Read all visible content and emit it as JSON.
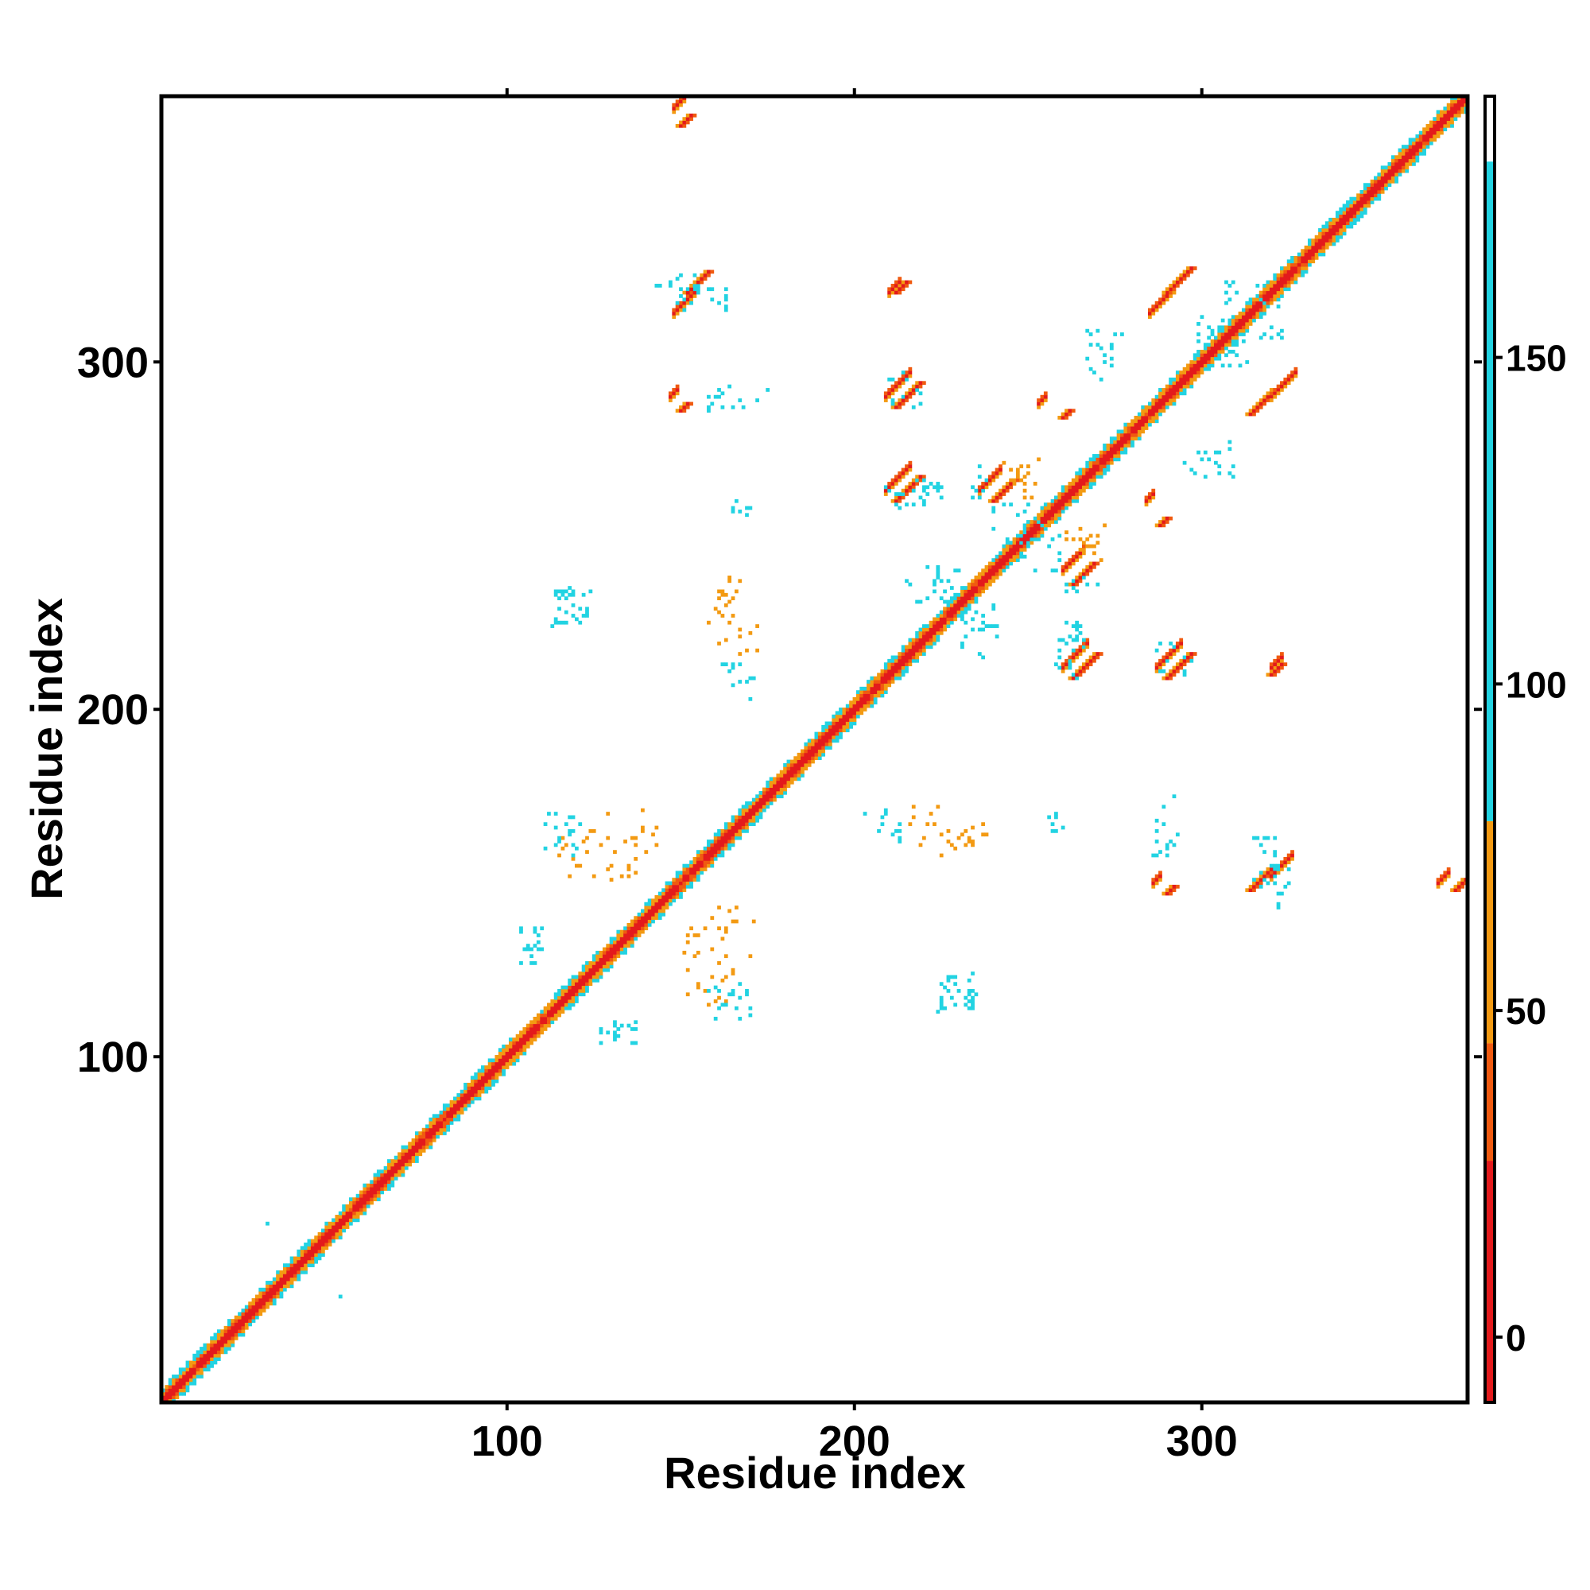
{
  "chart_data": {
    "type": "heatmap",
    "title": "",
    "xlabel": "Residue index",
    "ylabel": "Residue index",
    "xlim": [
      1,
      376
    ],
    "ylim": [
      1,
      376
    ],
    "x_ticks": [
      100,
      200,
      300
    ],
    "y_ticks": [
      100,
      200,
      300
    ],
    "colorbar": {
      "range": [
        -10,
        190
      ],
      "ticks": [
        0,
        50,
        100,
        150
      ],
      "bands": [
        {
          "from": -10,
          "to": 27,
          "color": "#e31a1c"
        },
        {
          "from": 27,
          "to": 45,
          "color": "#f05a10"
        },
        {
          "from": 45,
          "to": 79,
          "color": "#f39a12"
        },
        {
          "from": 79,
          "to": 180,
          "color": "#22d3e2"
        },
        {
          "from": 180,
          "to": 190,
          "color": "#ffffff"
        }
      ]
    },
    "grid": false,
    "diagonal": {
      "from": 1,
      "to": 376
    },
    "contact_blocks": [
      {
        "x": 148,
        "y": 314,
        "len": 8,
        "value": 5
      },
      {
        "x": 285,
        "y": 314,
        "len": 8,
        "value": 5
      },
      {
        "x": 209,
        "y": 290,
        "len": 8,
        "value": 5
      },
      {
        "x": 209,
        "y": 263,
        "len": 8,
        "value": 5
      },
      {
        "x": 236,
        "y": 263,
        "len": 7,
        "value": 5
      },
      {
        "x": 320,
        "y": 290,
        "len": 8,
        "value": 5
      },
      {
        "x": 260,
        "y": 240,
        "len": 7,
        "value": 5
      },
      {
        "x": 260,
        "y": 212,
        "len": 8,
        "value": 5
      },
      {
        "x": 287,
        "y": 212,
        "len": 8,
        "value": 5
      },
      {
        "x": 320,
        "y": 152,
        "len": 7,
        "value": 5
      },
      {
        "x": 148,
        "y": 373,
        "len": 4,
        "value": 5
      },
      {
        "x": 210,
        "y": 320,
        "len": 4,
        "value": 5
      },
      {
        "x": 368,
        "y": 150,
        "len": 4,
        "value": 5
      },
      {
        "x": 320,
        "y": 212,
        "len": 4,
        "value": 5
      },
      {
        "x": 147,
        "y": 290,
        "len": 3,
        "value": 5
      },
      {
        "x": 253,
        "y": 288,
        "len": 3,
        "value": 5
      },
      {
        "x": 284,
        "y": 260,
        "len": 3,
        "value": 5
      },
      {
        "x": 286,
        "y": 150,
        "len": 3,
        "value": 5
      }
    ],
    "scatter_patches": [
      {
        "cx": 118,
        "cy": 230,
        "rx": 6,
        "ry": 6,
        "n": 22,
        "value": 95
      },
      {
        "cx": 166,
        "cy": 225,
        "rx": 7,
        "ry": 9,
        "n": 16,
        "value": 55
      },
      {
        "cx": 168,
        "cy": 206,
        "rx": 4,
        "ry": 3,
        "n": 6,
        "value": 95
      },
      {
        "cx": 168,
        "cy": 258,
        "rx": 3,
        "ry": 2,
        "n": 5,
        "value": 95
      },
      {
        "cx": 215,
        "cy": 262,
        "rx": 7,
        "ry": 4,
        "n": 14,
        "value": 95
      },
      {
        "cx": 215,
        "cy": 292,
        "rx": 6,
        "ry": 5,
        "n": 12,
        "value": 95
      },
      {
        "cx": 168,
        "cy": 290,
        "rx": 8,
        "ry": 3,
        "n": 10,
        "value": 95
      },
      {
        "cx": 155,
        "cy": 318,
        "rx": 9,
        "ry": 4,
        "n": 16,
        "value": 95
      },
      {
        "cx": 246,
        "cy": 254,
        "rx": 8,
        "ry": 6,
        "n": 16,
        "value": 95
      },
      {
        "cx": 247,
        "cy": 268,
        "rx": 4,
        "ry": 3,
        "n": 10,
        "value": 55
      },
      {
        "cx": 266,
        "cy": 236,
        "rx": 6,
        "ry": 3,
        "n": 10,
        "value": 95
      },
      {
        "cx": 267,
        "cy": 250,
        "rx": 6,
        "ry": 3,
        "n": 8,
        "value": 55
      },
      {
        "cx": 223,
        "cy": 238,
        "rx": 7,
        "ry": 3,
        "n": 10,
        "value": 95
      },
      {
        "cx": 234,
        "cy": 222,
        "rx": 4,
        "ry": 8,
        "n": 12,
        "value": 95
      },
      {
        "cx": 262,
        "cy": 220,
        "rx": 3,
        "ry": 7,
        "n": 12,
        "value": 95
      },
      {
        "cx": 272,
        "cy": 305,
        "rx": 5,
        "ry": 5,
        "n": 12,
        "value": 95
      },
      {
        "cx": 303,
        "cy": 310,
        "rx": 5,
        "ry": 5,
        "n": 10,
        "value": 95
      },
      {
        "cx": 300,
        "cy": 270,
        "rx": 5,
        "ry": 4,
        "n": 10,
        "value": 95
      },
      {
        "cx": 312,
        "cy": 320,
        "rx": 6,
        "ry": 4,
        "n": 10,
        "value": 95
      },
      {
        "cx": 232,
        "cy": 162,
        "rx": 7,
        "ry": 5,
        "n": 14,
        "value": 55
      },
      {
        "cx": 212,
        "cy": 164,
        "rx": 2,
        "ry": 4,
        "n": 6,
        "value": 95
      },
      {
        "cx": 259,
        "cy": 165,
        "rx": 2,
        "ry": 2,
        "n": 3,
        "value": 95
      },
      {
        "cx": 288,
        "cy": 162,
        "rx": 3,
        "ry": 5,
        "n": 8,
        "value": 95
      },
      {
        "cx": 323,
        "cy": 154,
        "rx": 3,
        "ry": 5,
        "n": 10,
        "value": 95
      },
      {
        "cx": 322,
        "cy": 145,
        "rx": 1,
        "ry": 3,
        "n": 4,
        "value": 95
      },
      {
        "cx": 124,
        "cy": 158,
        "rx": 10,
        "ry": 7,
        "n": 22,
        "value": 55
      },
      {
        "cx": 119,
        "cy": 163,
        "rx": 4,
        "ry": 5,
        "n": 8,
        "value": 95
      },
      {
        "cx": 161,
        "cy": 134,
        "rx": 10,
        "ry": 9,
        "n": 20,
        "value": 55
      },
      {
        "cx": 166,
        "cy": 115,
        "rx": 6,
        "ry": 4,
        "n": 10,
        "value": 95
      },
      {
        "cx": 107,
        "cy": 134,
        "rx": 4,
        "ry": 4,
        "n": 10,
        "value": 95
      },
      {
        "cx": 131,
        "cy": 106,
        "rx": 5,
        "ry": 3,
        "n": 10,
        "value": 95
      },
      {
        "cx": 230,
        "cy": 119,
        "rx": 5,
        "ry": 4,
        "n": 14,
        "value": 95
      },
      {
        "cx": 31,
        "cy": 52,
        "rx": 1,
        "ry": 1,
        "n": 1,
        "value": 95
      },
      {
        "cx": 51,
        "cy": 31,
        "rx": 1,
        "ry": 1,
        "n": 1,
        "value": 95
      }
    ]
  }
}
